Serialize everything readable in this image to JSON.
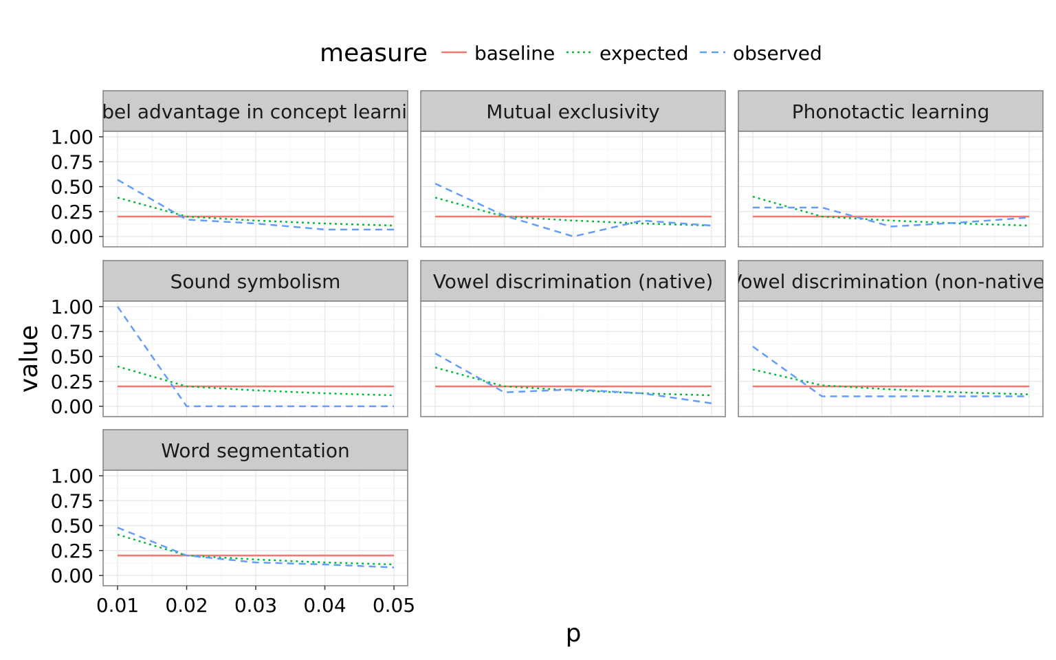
{
  "chart_data": {
    "type": "line",
    "xlabel": "p",
    "ylabel": "value",
    "xlim": [
      0.01,
      0.05
    ],
    "ylim": [
      0,
      1
    ],
    "x_ticks": [
      "0.01",
      "0.02",
      "0.03",
      "0.04",
      "0.05"
    ],
    "y_ticks": [
      "0.00",
      "0.25",
      "0.50",
      "0.75",
      "1.00"
    ],
    "grid": true,
    "legend": {
      "title": "measure",
      "position": "top",
      "entries": [
        {
          "name": "baseline",
          "color": "#F8766D",
          "linetype": "solid"
        },
        {
          "name": "expected",
          "color": "#00BA38",
          "linetype": "dotted"
        },
        {
          "name": "observed",
          "color": "#619CFF",
          "linetype": "dashed"
        }
      ]
    },
    "x": [
      0.01,
      0.02,
      0.03,
      0.04,
      0.05
    ],
    "panels": [
      {
        "title": "Label advantage in concept learning",
        "series": [
          {
            "name": "baseline",
            "values": [
              0.2,
              0.2,
              0.2,
              0.2,
              0.2
            ]
          },
          {
            "name": "expected",
            "values": [
              0.39,
              0.2,
              0.16,
              0.13,
              0.11
            ]
          },
          {
            "name": "observed",
            "values": [
              0.57,
              0.17,
              0.13,
              0.07,
              0.07
            ]
          }
        ]
      },
      {
        "title": "Mutual exclusivity",
        "series": [
          {
            "name": "baseline",
            "values": [
              0.2,
              0.2,
              0.2,
              0.2,
              0.2
            ]
          },
          {
            "name": "expected",
            "values": [
              0.39,
              0.2,
              0.16,
              0.13,
              0.11
            ]
          },
          {
            "name": "observed",
            "values": [
              0.53,
              0.21,
              0.0,
              0.16,
              0.11
            ]
          }
        ]
      },
      {
        "title": "Phonotactic learning",
        "series": [
          {
            "name": "baseline",
            "values": [
              0.2,
              0.2,
              0.2,
              0.2,
              0.2
            ]
          },
          {
            "name": "expected",
            "values": [
              0.4,
              0.2,
              0.16,
              0.13,
              0.11
            ]
          },
          {
            "name": "observed",
            "values": [
              0.29,
              0.29,
              0.1,
              0.14,
              0.19
            ]
          }
        ]
      },
      {
        "title": "Sound symbolism",
        "series": [
          {
            "name": "baseline",
            "values": [
              0.2,
              0.2,
              0.2,
              0.2,
              0.2
            ]
          },
          {
            "name": "expected",
            "values": [
              0.4,
              0.2,
              0.16,
              0.13,
              0.11
            ]
          },
          {
            "name": "observed",
            "values": [
              1.0,
              0.0,
              0.0,
              0.0,
              0.0
            ]
          }
        ]
      },
      {
        "title": "Vowel discrimination (native)",
        "series": [
          {
            "name": "baseline",
            "values": [
              0.2,
              0.2,
              0.2,
              0.2,
              0.2
            ]
          },
          {
            "name": "expected",
            "values": [
              0.39,
              0.2,
              0.16,
              0.13,
              0.11
            ]
          },
          {
            "name": "observed",
            "values": [
              0.53,
              0.14,
              0.17,
              0.13,
              0.03
            ]
          }
        ]
      },
      {
        "title": "Vowel discrimination (non-native)",
        "series": [
          {
            "name": "baseline",
            "values": [
              0.2,
              0.2,
              0.2,
              0.2,
              0.2
            ]
          },
          {
            "name": "expected",
            "values": [
              0.37,
              0.21,
              0.17,
              0.14,
              0.12
            ]
          },
          {
            "name": "observed",
            "values": [
              0.6,
              0.1,
              0.1,
              0.1,
              0.1
            ]
          }
        ]
      },
      {
        "title": "Word segmentation",
        "series": [
          {
            "name": "baseline",
            "values": [
              0.2,
              0.2,
              0.2,
              0.2,
              0.2
            ]
          },
          {
            "name": "expected",
            "values": [
              0.41,
              0.2,
              0.16,
              0.13,
              0.11
            ]
          },
          {
            "name": "observed",
            "values": [
              0.48,
              0.2,
              0.13,
              0.11,
              0.08
            ]
          }
        ]
      }
    ]
  }
}
